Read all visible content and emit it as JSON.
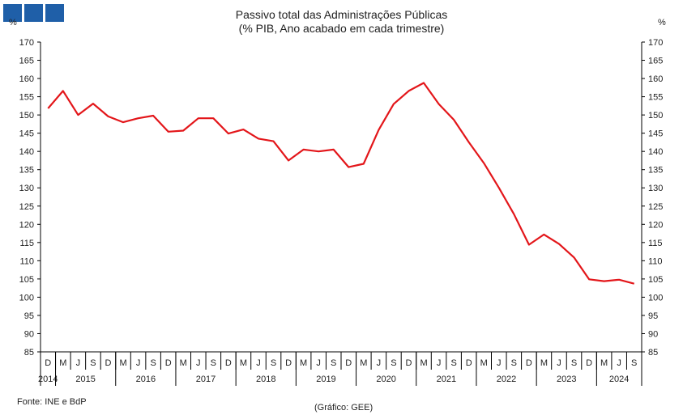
{
  "logo": {
    "color": "#1f5fa8",
    "blocks": 3
  },
  "title": {
    "line1": "Passivo total das Administrações Públicas",
    "line2": "(% PIB, Ano acabado em cada trimestre)"
  },
  "unit_left": "%",
  "unit_right": "%",
  "source": "Fonte: INE e BdP",
  "credit": "(Gráfico: GEE)",
  "chart_data": {
    "type": "line",
    "title": "Passivo total das Administrações Públicas",
    "subtitle": "(% PIB, Ano acabado em cada trimestre)",
    "ylabel": "%",
    "ylim": [
      85,
      170
    ],
    "yticks": [
      85,
      90,
      95,
      100,
      105,
      110,
      115,
      120,
      125,
      130,
      135,
      140,
      145,
      150,
      155,
      160,
      165,
      170
    ],
    "grid": false,
    "line_color": "#e3161a",
    "quarter_labels": [
      "D",
      "M",
      "J",
      "S",
      "D",
      "M",
      "J",
      "S",
      "D",
      "M",
      "J",
      "S",
      "D",
      "M",
      "J",
      "S",
      "D",
      "M",
      "J",
      "S",
      "D",
      "M",
      "J",
      "S",
      "D",
      "M",
      "J",
      "S",
      "D",
      "M",
      "J",
      "S",
      "D",
      "M",
      "J",
      "S",
      "D",
      "M",
      "J",
      "S"
    ],
    "years": [
      {
        "label": "2014",
        "start": 0,
        "span": 1
      },
      {
        "label": "2015",
        "start": 1,
        "span": 4
      },
      {
        "label": "2016",
        "start": 5,
        "span": 4
      },
      {
        "label": "2017",
        "start": 9,
        "span": 4
      },
      {
        "label": "2018",
        "start": 13,
        "span": 4
      },
      {
        "label": "2019",
        "start": 17,
        "span": 4
      },
      {
        "label": "2020",
        "start": 21,
        "span": 4
      },
      {
        "label": "2021",
        "start": 25,
        "span": 4
      },
      {
        "label": "2022",
        "start": 29,
        "span": 4
      },
      {
        "label": "2023",
        "start": 33,
        "span": 4
      },
      {
        "label": "2024",
        "start": 37,
        "span": 3
      }
    ],
    "series": [
      {
        "values": [
          151.8,
          156.6,
          150.0,
          153.1,
          149.6,
          148.0,
          149.1,
          149.8,
          145.4,
          145.7,
          149.1,
          149.1,
          144.9,
          146.0,
          143.5,
          142.8,
          137.5,
          140.5,
          140.0,
          140.5,
          135.7,
          136.6,
          145.9,
          153.0,
          156.6,
          158.8,
          153.0,
          148.7,
          142.5,
          136.8,
          130.0,
          122.8,
          114.4,
          117.2,
          114.6,
          110.9,
          104.9,
          104.4,
          104.8,
          103.7
        ]
      }
    ]
  }
}
